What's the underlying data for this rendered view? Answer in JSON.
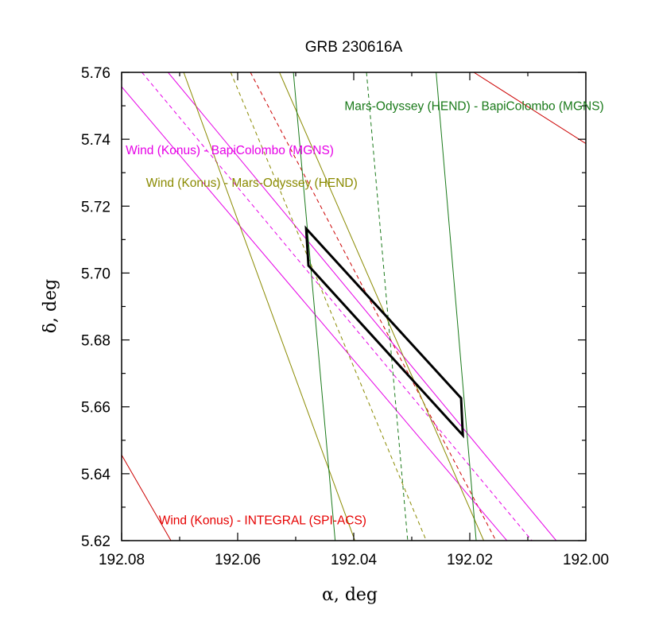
{
  "chart_data": {
    "type": "line",
    "title": "GRB 230616A",
    "xlabel": "α, deg",
    "ylabel": "δ, deg",
    "xlim": [
      192.08,
      192.0
    ],
    "ylim": [
      5.62,
      5.76
    ],
    "x_reversed": true,
    "x_ticks": [
      "192.08",
      "192.06",
      "192.04",
      "192.02",
      "192.00"
    ],
    "x_tick_values": [
      192.08,
      192.06,
      192.04,
      192.02,
      192.0
    ],
    "y_ticks": [
      "5.62",
      "5.64",
      "5.66",
      "5.68",
      "5.70",
      "5.72",
      "5.74",
      "5.76"
    ],
    "y_tick_values": [
      5.62,
      5.64,
      5.66,
      5.68,
      5.7,
      5.72,
      5.74,
      5.76
    ],
    "grid": false,
    "annotations": [
      {
        "id": "ann-mo-bc",
        "text": "Mars-Odyssey (HEND) - BapiColombo (MGNS)",
        "color": "#1a7a1a",
        "at": [
          192.0416,
          5.7487
        ]
      },
      {
        "id": "ann-konus-bc",
        "text": "Wind (Konus) - BapiColombo (MGNS)",
        "color": "#e600e6",
        "at": [
          192.0793,
          5.7355
        ]
      },
      {
        "id": "ann-konus-mo",
        "text": "Wind (Konus) - Mars-Odyssey (HEND)",
        "color": "#8a8a00",
        "at": [
          192.0758,
          5.7258
        ]
      },
      {
        "id": "ann-konus-integral",
        "text": "Wind (Konus) - INTEGRAL (SPI-ACS)",
        "color": "#e60000",
        "at": [
          192.0736,
          5.6249
        ]
      }
    ],
    "series": [
      {
        "id": "konus-integral-1",
        "color": "#cc0000",
        "dash": "solid",
        "points": [
          [
            192.08,
            5.6456
          ],
          [
            192.0715,
            5.62
          ]
        ]
      },
      {
        "id": "konus-integral-2",
        "color": "#cc0000",
        "dash": "solid",
        "points": [
          [
            192.0193,
            5.76
          ],
          [
            192.0,
            5.7387
          ]
        ]
      },
      {
        "id": "konus-integral-c",
        "color": "#cc0000",
        "dash": "dash",
        "points": [
          [
            192.0578,
            5.76
          ],
          [
            192.0155,
            5.62
          ]
        ]
      },
      {
        "id": "konus-bc-1",
        "color": "#e600e6",
        "dash": "solid",
        "points": [
          [
            192.08,
            5.7557
          ],
          [
            192.0136,
            5.62
          ]
        ]
      },
      {
        "id": "konus-bc-2",
        "color": "#e600e6",
        "dash": "solid",
        "points": [
          [
            192.072,
            5.76
          ],
          [
            192.0051,
            5.62
          ]
        ]
      },
      {
        "id": "konus-bc-c",
        "color": "#e600e6",
        "dash": "dash",
        "points": [
          [
            192.0765,
            5.76
          ],
          [
            192.0093,
            5.62
          ]
        ]
      },
      {
        "id": "konus-mo-1",
        "color": "#8a8a00",
        "dash": "solid",
        "points": [
          [
            192.0693,
            5.76
          ],
          [
            192.0398,
            5.62
          ]
        ]
      },
      {
        "id": "konus-mo-2",
        "color": "#8a8a00",
        "dash": "solid",
        "points": [
          [
            192.0528,
            5.76
          ],
          [
            192.0176,
            5.62
          ]
        ]
      },
      {
        "id": "konus-mo-c",
        "color": "#8a8a00",
        "dash": "dash",
        "points": [
          [
            192.0612,
            5.76
          ],
          [
            192.0275,
            5.62
          ]
        ]
      },
      {
        "id": "mo-bc-1",
        "color": "#1a7a1a",
        "dash": "solid",
        "points": [
          [
            192.0504,
            5.76
          ],
          [
            192.0432,
            5.62
          ]
        ]
      },
      {
        "id": "mo-bc-2",
        "color": "#1a7a1a",
        "dash": "solid",
        "points": [
          [
            192.0258,
            5.76
          ],
          [
            192.0189,
            5.62
          ]
        ]
      },
      {
        "id": "mo-bc-c",
        "color": "#1a7a1a",
        "dash": "dash",
        "points": [
          [
            192.0378,
            5.76
          ],
          [
            192.0307,
            5.62
          ]
        ]
      }
    ],
    "error_box": {
      "color": "#000000",
      "points": [
        [
          192.0482,
          5.7133
        ],
        [
          192.0215,
          5.6626
        ],
        [
          192.0212,
          5.6515
        ],
        [
          192.0478,
          5.7022
        ]
      ]
    }
  }
}
